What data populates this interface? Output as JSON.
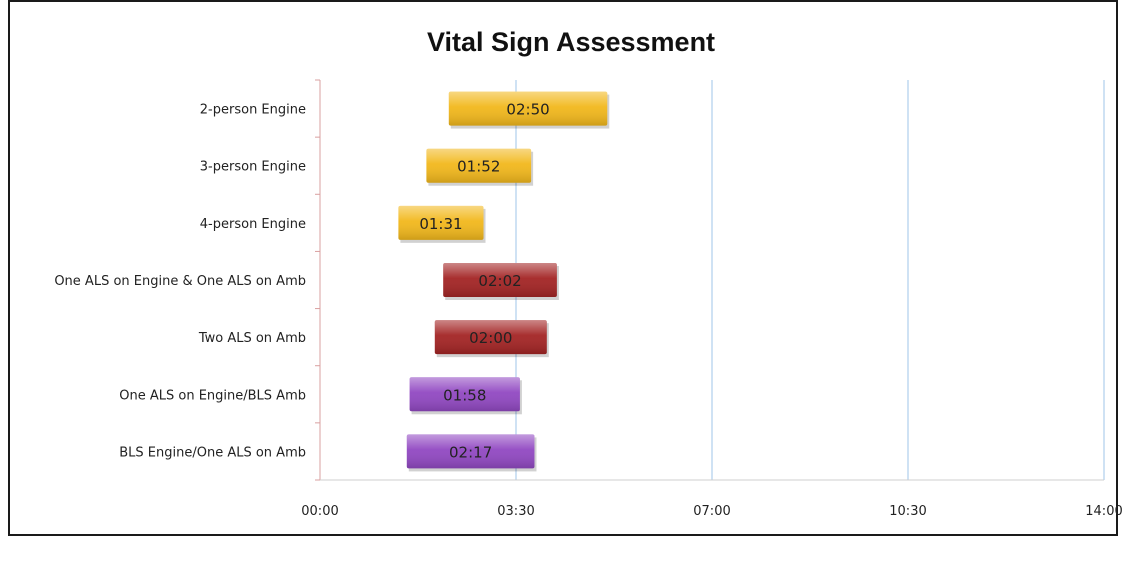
{
  "chart_data": {
    "type": "bar",
    "orientation": "horizontal-floating",
    "title": "Vital Sign Assessment",
    "xlabel": "",
    "ylabel": "",
    "x_ticks": [
      "00:00",
      "03:30",
      "07:00",
      "10:30",
      "14:00"
    ],
    "xlim_minutes": [
      0,
      14
    ],
    "grid": "vertical major gridlines",
    "legend": "none",
    "categories": [
      "2-person Engine",
      "3-person Engine",
      "4-person Engine",
      "One ALS on Engine & One ALS on Amb",
      "Two ALS on Amb",
      "One ALS on Engine/BLS Amb",
      "BLS Engine/One ALS on Amb"
    ],
    "series": [
      {
        "start_minutes": [
          2.3,
          1.9,
          1.4,
          2.2,
          2.05,
          1.6,
          1.55
        ],
        "duration_minutes": [
          2.83,
          1.87,
          1.52,
          2.03,
          2.0,
          1.97,
          2.28
        ],
        "labels": [
          "02:50",
          "01:52",
          "01:31",
          "02:02",
          "02:00",
          "01:58",
          "02:17"
        ]
      }
    ],
    "bar_colors": [
      "#f2b81c",
      "#f2b81c",
      "#f2b81c",
      "#a32424",
      "#a32424",
      "#9148c2",
      "#9148c2"
    ]
  }
}
